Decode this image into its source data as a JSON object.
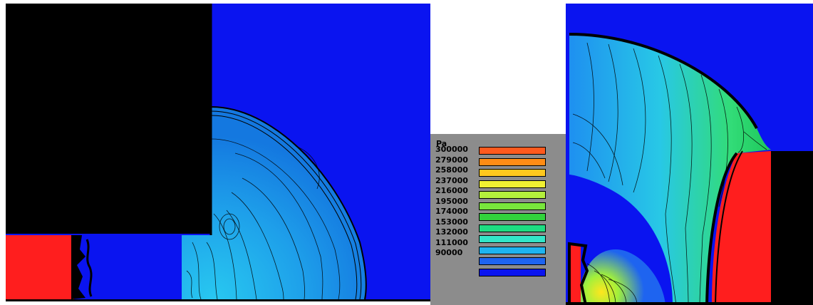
{
  "legend": {
    "unit": "Pa",
    "levels": [
      "300000",
      "279000",
      "258000",
      "237000",
      "216000",
      "195000",
      "174000",
      "153000",
      "132000",
      "111000",
      "90000"
    ],
    "colors": [
      "#ff5a1e",
      "#ff8c14",
      "#ffc81e",
      "#f0f032",
      "#b4f03c",
      "#78e63c",
      "#32d23c",
      "#1edc82",
      "#32e6c8",
      "#1eb4f0",
      "#1e64f0",
      "#0a14f0"
    ]
  },
  "colors": {
    "background": "#ffffff",
    "solid": "#000000",
    "high_pressure": "#ff1e1e",
    "ambient": "#0a14f0",
    "expansion": "#14b4e6"
  }
}
